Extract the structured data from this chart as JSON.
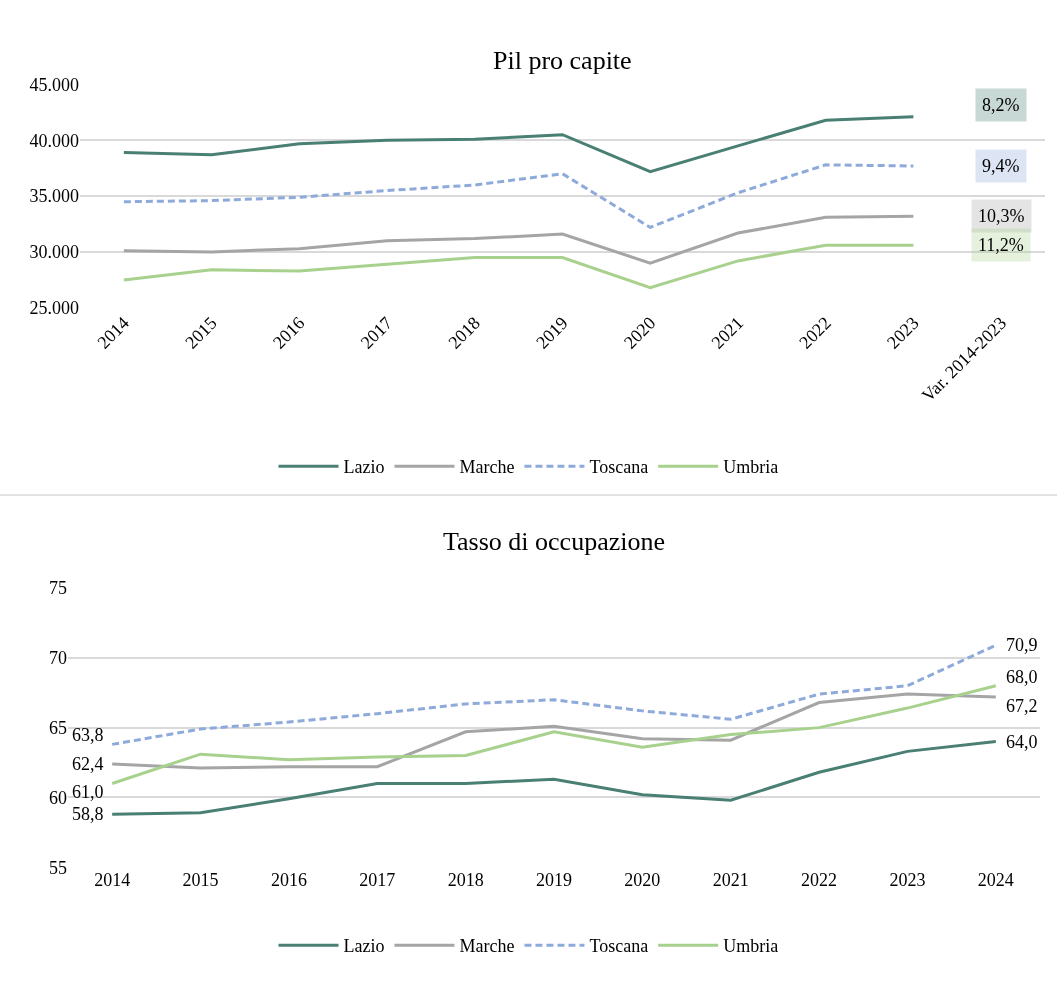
{
  "chart_data": [
    {
      "type": "line",
      "title": "Pil pro capite",
      "categories": [
        "2014",
        "2015",
        "2016",
        "2017",
        "2018",
        "2019",
        "2020",
        "2021",
        "2022",
        "2023",
        "Var. 2014-2023"
      ],
      "ylim": [
        25000,
        45000
      ],
      "yticks": [
        {
          "value": 25000,
          "label": "25.000"
        },
        {
          "value": 30000,
          "label": "30.000"
        },
        {
          "value": 35000,
          "label": "35.000"
        },
        {
          "value": 40000,
          "label": "40.000"
        },
        {
          "value": 45000,
          "label": "45.000"
        }
      ],
      "grid": "y",
      "legend": "bottom",
      "series": [
        {
          "name": "Lazio",
          "color": "#4a7f74",
          "values": [
            38900,
            38700,
            39700,
            40000,
            40100,
            40500,
            37200,
            39500,
            41800,
            42100,
            null
          ]
        },
        {
          "name": "Marche",
          "color": "#a5a5a5",
          "values": [
            30100,
            30000,
            30300,
            31000,
            31200,
            31600,
            29000,
            31700,
            33100,
            33200,
            null
          ]
        },
        {
          "name": "Toscana",
          "color": "#8eaadb",
          "line_style": "dashed",
          "values": [
            34500,
            34600,
            34900,
            35500,
            36000,
            37000,
            32200,
            35300,
            37800,
            37700,
            null
          ]
        },
        {
          "name": "Umbria",
          "color": "#a9d18e",
          "values": [
            27500,
            28400,
            28300,
            28900,
            29500,
            29500,
            26800,
            29200,
            30600,
            30600,
            null
          ]
        }
      ],
      "annotations": [
        "8,2%",
        "9,4%",
        "10,3%",
        "11,2%"
      ]
    },
    {
      "type": "line",
      "title": "Tasso di occupazione",
      "categories": [
        "2014",
        "2015",
        "2016",
        "2017",
        "2018",
        "2019",
        "2020",
        "2021",
        "2022",
        "2023",
        "2024"
      ],
      "ylim": [
        55,
        75
      ],
      "yticks": [
        55,
        60,
        65,
        70,
        75
      ],
      "grid": "y",
      "legend": "bottom",
      "series": [
        {
          "name": "Lazio",
          "color": "#4a7f74",
          "values": [
            58.8,
            58.9,
            59.9,
            61.0,
            61.0,
            61.3,
            60.2,
            59.8,
            61.8,
            63.3,
            64.0
          ],
          "value_labels": [
            "58,8",
            null,
            null,
            null,
            null,
            null,
            null,
            null,
            null,
            null,
            "64,0"
          ]
        },
        {
          "name": "Marche",
          "color": "#a5a5a5",
          "values": [
            62.4,
            62.1,
            62.2,
            62.2,
            64.7,
            65.1,
            64.2,
            64.1,
            66.8,
            67.4,
            67.2
          ],
          "value_labels": [
            "62,4",
            null,
            null,
            null,
            null,
            null,
            null,
            null,
            null,
            null,
            "67,2"
          ]
        },
        {
          "name": "Toscana",
          "color": "#8eaadb",
          "line_style": "dashed",
          "values": [
            63.8,
            64.9,
            65.4,
            66.0,
            66.7,
            67.0,
            66.2,
            65.6,
            67.4,
            68.0,
            70.9
          ],
          "value_labels": [
            "63,8",
            null,
            null,
            null,
            null,
            null,
            null,
            null,
            null,
            null,
            "70,9"
          ]
        },
        {
          "name": "Umbria",
          "color": "#a9d18e",
          "values": [
            61.0,
            63.1,
            62.7,
            62.9,
            63.0,
            64.7,
            63.6,
            64.5,
            65.0,
            66.4,
            68.0
          ],
          "value_labels": [
            "61,0",
            null,
            null,
            null,
            null,
            null,
            null,
            null,
            null,
            null,
            "68,0"
          ]
        }
      ]
    }
  ]
}
